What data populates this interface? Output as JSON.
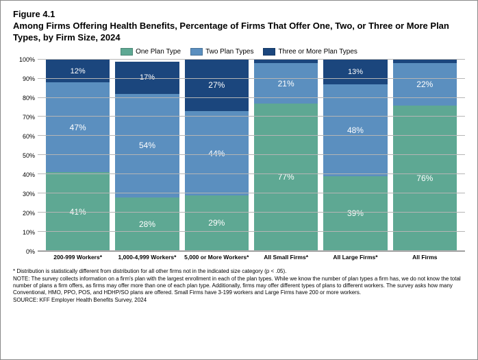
{
  "figure_label": "Figure 4.1",
  "title": "Among Firms Offering Health Benefits, Percentage of Firms That Offer One, Two, or Three or More Plan Types, by Firm Size, 2024",
  "legend": [
    {
      "label": "One Plan Type",
      "color": "#5ea893"
    },
    {
      "label": "Two Plan Types",
      "color": "#5b8fbf"
    },
    {
      "label": "Three or More Plan Types",
      "color": "#1b467d"
    }
  ],
  "colors": {
    "one": "#5ea893",
    "two": "#5b8fbf",
    "three": "#1b467d",
    "grid": "#b5b5b5",
    "bg": "#ffffff"
  },
  "y_axis": {
    "min": 0,
    "max": 100,
    "step": 10,
    "ticks": [
      "0%",
      "10%",
      "20%",
      "30%",
      "40%",
      "50%",
      "60%",
      "70%",
      "80%",
      "90%",
      "100%"
    ]
  },
  "categories": [
    {
      "label": "200-999 Workers*",
      "segments": [
        {
          "key": "one",
          "value": 41,
          "text": "41%"
        },
        {
          "key": "two",
          "value": 47,
          "text": "47%"
        },
        {
          "key": "three",
          "value": 12,
          "text": "12%"
        }
      ]
    },
    {
      "label": "1,000-4,999 Workers*",
      "segments": [
        {
          "key": "one",
          "value": 28,
          "text": "28%"
        },
        {
          "key": "two",
          "value": 54,
          "text": "54%"
        },
        {
          "key": "three",
          "value": 17,
          "text": "17%"
        }
      ]
    },
    {
      "label": "5,000 or More Workers*",
      "segments": [
        {
          "key": "one",
          "value": 29,
          "text": "29%"
        },
        {
          "key": "two",
          "value": 44,
          "text": "44%"
        },
        {
          "key": "three",
          "value": 27,
          "text": "27%"
        }
      ]
    },
    {
      "label": "All Small Firms*",
      "segments": [
        {
          "key": "one",
          "value": 77,
          "text": "77%"
        },
        {
          "key": "two",
          "value": 21,
          "text": "21%"
        },
        {
          "key": "three",
          "value": 2,
          "text": ""
        }
      ]
    },
    {
      "label": "All Large Firms*",
      "segments": [
        {
          "key": "one",
          "value": 39,
          "text": "39%"
        },
        {
          "key": "two",
          "value": 48,
          "text": "48%"
        },
        {
          "key": "three",
          "value": 13,
          "text": "13%"
        }
      ]
    },
    {
      "label": "All Firms",
      "segments": [
        {
          "key": "one",
          "value": 76,
          "text": "76%"
        },
        {
          "key": "two",
          "value": 22,
          "text": "22%"
        },
        {
          "key": "three",
          "value": 2,
          "text": ""
        }
      ]
    }
  ],
  "notes": [
    "* Distribution is statistically different from distribution for all other firms not in the indicated size category (p < .05).",
    "NOTE: The survey collects information on a firm's plan with the largest enrollment in each of the plan types. While we know the number of plan types a firm has, we do not know the total number of plans a firm offers, as firms may offer more than one of each plan type. Additionally, firms may offer different types of plans to different workers. The survey asks how many Conventional, HMO, PPO, POS, and HDHP/SO plans are offered. Small Firms have 3-199 workers and Large Firms have 200 or more workers.",
    "SOURCE: KFF Employer Health Benefits Survey, 2024"
  ]
}
